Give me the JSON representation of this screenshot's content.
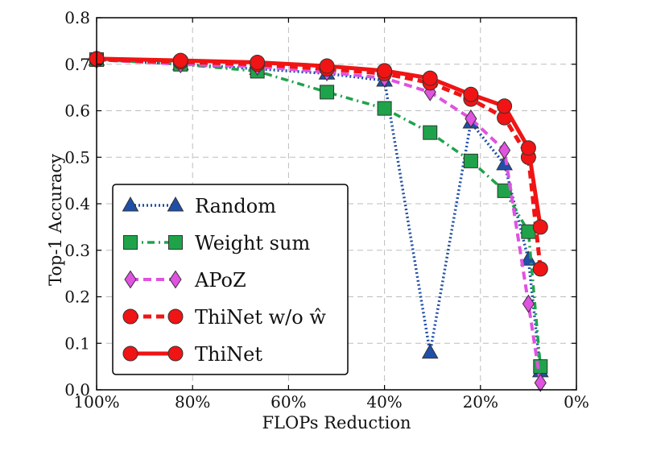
{
  "chart_data": {
    "type": "line",
    "title": "",
    "xlabel": "FLOPs Reduction",
    "ylabel": "Top-1 Accuracy",
    "xlim": [
      100,
      0
    ],
    "ylim": [
      0.0,
      0.8
    ],
    "x_ticks": [
      100,
      80,
      60,
      40,
      20,
      0
    ],
    "x_tick_labels": [
      "100%",
      "80%",
      "60%",
      "40%",
      "20%",
      "0%"
    ],
    "y_ticks": [
      0.0,
      0.1,
      0.2,
      0.3,
      0.4,
      0.5,
      0.6,
      0.7,
      0.8
    ],
    "y_tick_labels": [
      "0.0",
      "0.1",
      "0.2",
      "0.3",
      "0.4",
      "0.5",
      "0.6",
      "0.7",
      "0.8"
    ],
    "grid": true,
    "legend_position": "lower-left",
    "series": [
      {
        "name": "Random",
        "color": "#1f4fa8",
        "marker": "triangle",
        "line_style": "dotted",
        "x": [
          100,
          82.5,
          66.5,
          52,
          40,
          30.5,
          22,
          15,
          10,
          7.5
        ],
        "y": [
          0.71,
          0.7,
          0.69,
          0.68,
          0.665,
          0.08,
          0.575,
          0.485,
          0.28,
          0.04
        ]
      },
      {
        "name": "Weight sum",
        "color": "#1fa34a",
        "marker": "square",
        "line_style": "dashdot",
        "x": [
          100,
          82.5,
          66.5,
          52,
          40,
          30.5,
          22,
          15,
          10,
          7.5
        ],
        "y": [
          0.71,
          0.7,
          0.685,
          0.64,
          0.605,
          0.553,
          0.492,
          0.428,
          0.34,
          0.05
        ]
      },
      {
        "name": "APoZ",
        "color": "#e052e0",
        "marker": "diamond",
        "line_style": "dashed",
        "x": [
          100,
          82.5,
          66.5,
          52,
          40,
          30.5,
          22,
          15,
          10,
          7.5
        ],
        "y": [
          0.71,
          0.7,
          0.695,
          0.683,
          0.67,
          0.64,
          0.583,
          0.515,
          0.185,
          0.015
        ]
      },
      {
        "name": "ThiNet w/o ŵ",
        "color": "#f01414",
        "marker": "circle",
        "line_style": "dashed",
        "x": [
          100,
          82.5,
          66.5,
          52,
          40,
          30.5,
          22,
          15,
          10,
          7.5
        ],
        "y": [
          0.71,
          0.705,
          0.7,
          0.69,
          0.68,
          0.66,
          0.625,
          0.585,
          0.5,
          0.26
        ]
      },
      {
        "name": "ThiNet",
        "color": "#f01414",
        "marker": "circle",
        "line_style": "solid",
        "x": [
          100,
          82.5,
          66.5,
          52,
          40,
          30.5,
          22,
          15,
          10,
          7.5
        ],
        "y": [
          0.712,
          0.708,
          0.704,
          0.696,
          0.686,
          0.67,
          0.635,
          0.61,
          0.52,
          0.35
        ]
      }
    ]
  }
}
